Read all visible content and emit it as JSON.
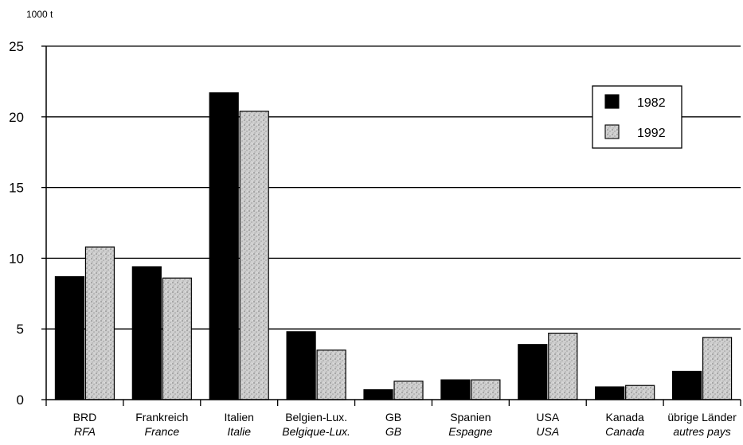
{
  "chart_data": {
    "type": "bar",
    "unit_label": "1000 t",
    "ylim": [
      0,
      25
    ],
    "yticks": [
      0,
      5,
      10,
      15,
      20,
      25
    ],
    "grid": true,
    "legend_position": "top-right",
    "categories": [
      {
        "de": "BRD",
        "fr": "RFA"
      },
      {
        "de": "Frankreich",
        "fr": "France"
      },
      {
        "de": "Italien",
        "fr": "Italie"
      },
      {
        "de": "Belgien-Lux.",
        "fr": "Belgique-Lux."
      },
      {
        "de": "GB",
        "fr": "GB"
      },
      {
        "de": "Spanien",
        "fr": "Espagne"
      },
      {
        "de": "USA",
        "fr": "USA"
      },
      {
        "de": "Kanada",
        "fr": "Canada"
      },
      {
        "de": "übrige Länder",
        "fr": "autres pays"
      }
    ],
    "series": [
      {
        "name": "1982",
        "color": "#000000",
        "values": [
          8.7,
          9.4,
          21.7,
          4.8,
          0.7,
          1.4,
          3.9,
          0.9,
          2.0
        ]
      },
      {
        "name": "1992",
        "color": "#c8c8c8",
        "values": [
          10.8,
          8.6,
          20.4,
          3.5,
          1.3,
          1.4,
          4.7,
          1.0,
          4.4
        ]
      }
    ]
  }
}
